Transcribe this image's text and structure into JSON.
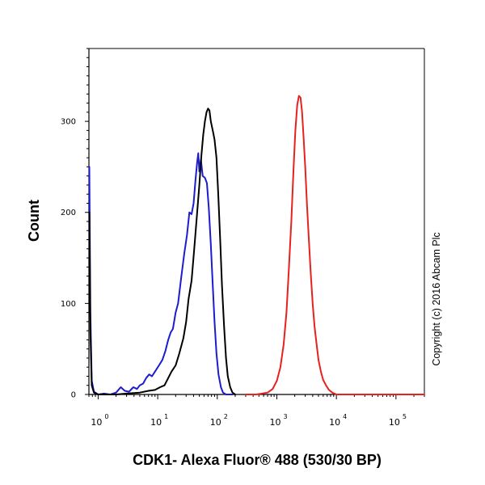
{
  "chart_data": {
    "type": "line",
    "xlabel": "CDK1- Alexa Fluor® 488 (530/30 BP)",
    "ylabel": "Count",
    "x_scale": "log",
    "xlim": [
      0.7,
      300000
    ],
    "ylim": [
      0,
      380
    ],
    "x_tick_labels": [
      {
        "base": "10",
        "exp": "0",
        "value": 1
      },
      {
        "base": "10",
        "exp": "1",
        "value": 10
      },
      {
        "base": "10",
        "exp": "2",
        "value": 100
      },
      {
        "base": "10",
        "exp": "3",
        "value": 1000
      },
      {
        "base": "10",
        "exp": "4",
        "value": 10000
      },
      {
        "base": "10",
        "exp": "5",
        "value": 100000
      }
    ],
    "y_ticks": [
      0,
      100,
      200,
      300
    ],
    "grid": false,
    "series": [
      {
        "color": "#1c1ccf",
        "points": [
          [
            0.71,
            250
          ],
          [
            0.74,
            90
          ],
          [
            0.78,
            15
          ],
          [
            0.85,
            3
          ],
          [
            1.0,
            0
          ],
          [
            1.25,
            1
          ],
          [
            1.6,
            0
          ],
          [
            2.0,
            2
          ],
          [
            2.4,
            8
          ],
          [
            2.8,
            4
          ],
          [
            3.3,
            3
          ],
          [
            3.9,
            8
          ],
          [
            4.5,
            6
          ],
          [
            5.0,
            10
          ],
          [
            5.7,
            12
          ],
          [
            6.4,
            18
          ],
          [
            7.2,
            22
          ],
          [
            8.0,
            20
          ],
          [
            9.2,
            26
          ],
          [
            10.5,
            32
          ],
          [
            12,
            38
          ],
          [
            13.5,
            48
          ],
          [
            15,
            60
          ],
          [
            16.5,
            68
          ],
          [
            18,
            72
          ],
          [
            20,
            90
          ],
          [
            22,
            100
          ],
          [
            25,
            130
          ],
          [
            28,
            155
          ],
          [
            31,
            175
          ],
          [
            34,
            200
          ],
          [
            37,
            198
          ],
          [
            40,
            210
          ],
          [
            43,
            235
          ],
          [
            46,
            255
          ],
          [
            48,
            265
          ],
          [
            50,
            245
          ],
          [
            53,
            258
          ],
          [
            57,
            240
          ],
          [
            62,
            238
          ],
          [
            67,
            232
          ],
          [
            72,
            205
          ],
          [
            78,
            165
          ],
          [
            84,
            120
          ],
          [
            90,
            80
          ],
          [
            97,
            45
          ],
          [
            105,
            22
          ],
          [
            115,
            8
          ],
          [
            125,
            2
          ],
          [
            140,
            0
          ],
          [
            180,
            0
          ]
        ]
      },
      {
        "color": "#000000",
        "points": [
          [
            0.71,
            200
          ],
          [
            0.74,
            70
          ],
          [
            0.78,
            10
          ],
          [
            0.85,
            2
          ],
          [
            1.0,
            0
          ],
          [
            2.0,
            0
          ],
          [
            3.0,
            1
          ],
          [
            5.0,
            2
          ],
          [
            7.0,
            4
          ],
          [
            9.0,
            5
          ],
          [
            11,
            8
          ],
          [
            13,
            10
          ],
          [
            15,
            18
          ],
          [
            17,
            25
          ],
          [
            20,
            32
          ],
          [
            23,
            45
          ],
          [
            27,
            62
          ],
          [
            30,
            80
          ],
          [
            33,
            105
          ],
          [
            37,
            125
          ],
          [
            41,
            160
          ],
          [
            45,
            192
          ],
          [
            50,
            230
          ],
          [
            54,
            262
          ],
          [
            58,
            285
          ],
          [
            62,
            300
          ],
          [
            66,
            310
          ],
          [
            70,
            314
          ],
          [
            74,
            312
          ],
          [
            78,
            300
          ],
          [
            84,
            290
          ],
          [
            90,
            280
          ],
          [
            97,
            260
          ],
          [
            104,
            220
          ],
          [
            112,
            170
          ],
          [
            120,
            120
          ],
          [
            130,
            75
          ],
          [
            140,
            40
          ],
          [
            150,
            20
          ],
          [
            165,
            8
          ],
          [
            180,
            2
          ],
          [
            200,
            0
          ]
        ]
      },
      {
        "color": "#e8211e",
        "points": [
          [
            300,
            0
          ],
          [
            450,
            0
          ],
          [
            700,
            2
          ],
          [
            850,
            6
          ],
          [
            1000,
            15
          ],
          [
            1150,
            30
          ],
          [
            1300,
            55
          ],
          [
            1450,
            90
          ],
          [
            1600,
            140
          ],
          [
            1750,
            190
          ],
          [
            1900,
            245
          ],
          [
            2050,
            290
          ],
          [
            2200,
            318
          ],
          [
            2350,
            328
          ],
          [
            2500,
            326
          ],
          [
            2650,
            310
          ],
          [
            2800,
            285
          ],
          [
            3000,
            250
          ],
          [
            3200,
            210
          ],
          [
            3450,
            170
          ],
          [
            3700,
            135
          ],
          [
            4000,
            100
          ],
          [
            4300,
            75
          ],
          [
            4650,
            55
          ],
          [
            5000,
            38
          ],
          [
            5500,
            25
          ],
          [
            6000,
            16
          ],
          [
            6700,
            10
          ],
          [
            7500,
            5
          ],
          [
            8500,
            2
          ],
          [
            10000,
            0
          ],
          [
            30000,
            0
          ],
          [
            300000,
            0
          ]
        ]
      }
    ]
  },
  "copyright": "Copyright (c) 2016 Abcam Plc"
}
